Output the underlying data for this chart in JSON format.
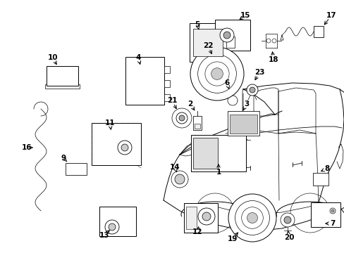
{
  "background_color": "#ffffff",
  "line_color": "#000000",
  "fig_width": 4.89,
  "fig_height": 3.6,
  "dpi": 100,
  "label_fontsize": 7.5,
  "lw": 0.7
}
